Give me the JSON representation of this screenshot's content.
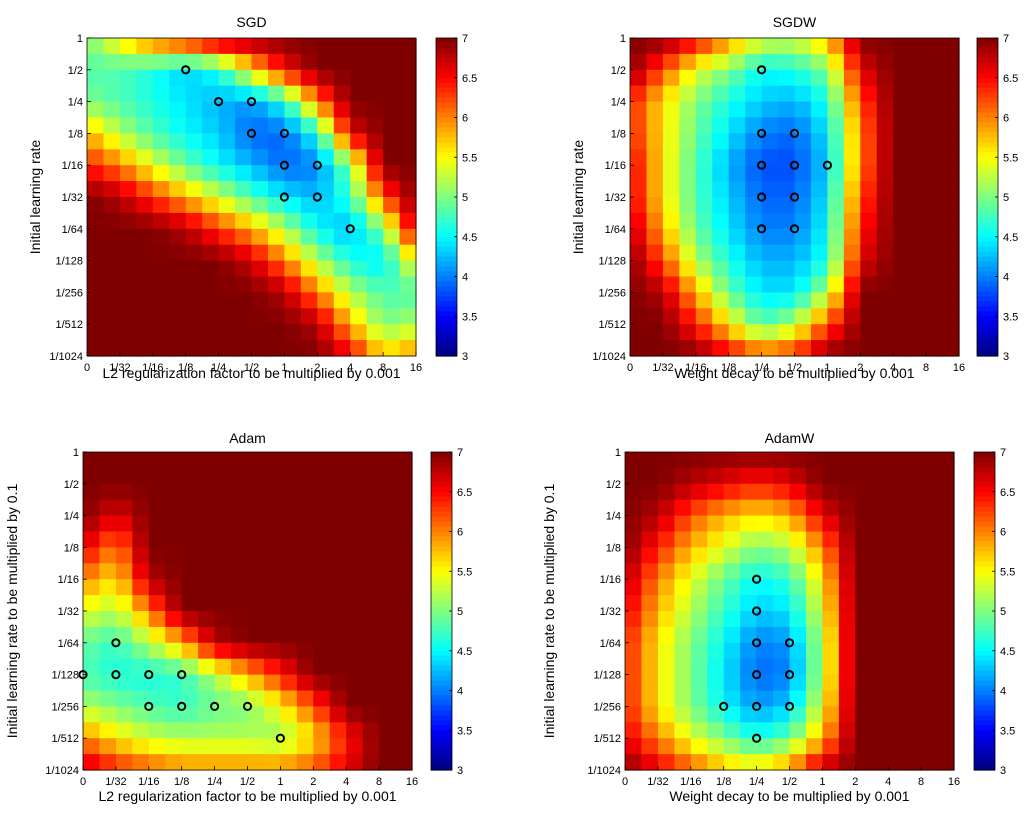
{
  "chart_data": [
    {
      "type": "heatmap",
      "title": "SGD",
      "xlabel": "L2 regularization factor to be multiplied by 0.001",
      "ylabel": "Initial learning rate",
      "x_ticks": [
        "0",
        "1/32",
        "1/16",
        "1/8",
        "1/4",
        "1/2",
        "1",
        "2",
        "4",
        "8",
        "16"
      ],
      "y_ticks": [
        "1",
        "1/2",
        "1/4",
        "1/8",
        "1/16",
        "1/32",
        "1/64",
        "1/128",
        "1/256",
        "1/512",
        "1/1024"
      ],
      "colorbar_ticks": [
        "3",
        "3.5",
        "4",
        "4.5",
        "5",
        "5.5",
        "6",
        "6.5",
        "7"
      ],
      "clim": [
        3,
        7
      ],
      "colormap": "jet",
      "best_settings": [
        {
          "x": "1/8",
          "y": "1/2"
        },
        {
          "x": "1/4",
          "y": "1/4"
        },
        {
          "x": "1/2",
          "y": "1/4"
        },
        {
          "x": "1/2",
          "y": "1/8"
        },
        {
          "x": "1",
          "y": "1/8"
        },
        {
          "x": "1",
          "y": "1/16"
        },
        {
          "x": "2",
          "y": "1/16"
        },
        {
          "x": "1",
          "y": "1/32"
        },
        {
          "x": "2",
          "y": "1/32"
        },
        {
          "x": "4",
          "y": "1/64"
        }
      ],
      "z": [
        [
          5.0,
          5.6,
          6.2,
          6.6,
          7,
          7,
          7,
          7,
          7,
          7,
          7
        ],
        [
          4.8,
          4.8,
          4.6,
          4.3,
          4.6,
          5.6,
          6.5,
          7,
          7,
          7,
          7
        ],
        [
          5.0,
          4.8,
          4.6,
          4.4,
          4.2,
          4.1,
          4.6,
          6.0,
          7,
          7,
          7
        ],
        [
          5.8,
          5.2,
          4.8,
          4.5,
          4.3,
          3.9,
          3.9,
          4.6,
          6.6,
          7,
          7
        ],
        [
          6.4,
          6.0,
          5.4,
          4.9,
          4.5,
          4.2,
          3.9,
          4.0,
          5.0,
          7,
          7
        ],
        [
          7,
          6.8,
          6.3,
          5.8,
          5.3,
          4.8,
          4.4,
          4.2,
          4.7,
          6.2,
          7
        ],
        [
          7,
          7,
          7,
          6.8,
          6.3,
          5.8,
          5.2,
          4.5,
          4.2,
          5.0,
          6.8
        ],
        [
          7,
          7,
          7,
          7,
          7,
          6.7,
          6.0,
          5.2,
          4.6,
          4.4,
          5.6
        ],
        [
          7,
          7,
          7,
          7,
          7,
          7,
          6.8,
          6.0,
          5.2,
          4.8,
          4.8
        ],
        [
          7,
          7,
          7,
          7,
          7,
          7,
          7,
          6.8,
          5.8,
          5.0,
          5.2
        ],
        [
          7,
          7,
          7,
          7,
          7,
          7,
          7,
          7,
          6.6,
          5.7,
          6.0
        ]
      ]
    },
    {
      "type": "heatmap",
      "title": "SGDW",
      "xlabel": "Weight decay to be multiplied by 0.001",
      "ylabel": "Initial learning rate",
      "x_ticks": [
        "0",
        "1/32",
        "1/16",
        "1/8",
        "1/4",
        "1/2",
        "1",
        "2",
        "4",
        "8",
        "16"
      ],
      "y_ticks": [
        "1",
        "1/2",
        "1/4",
        "1/8",
        "1/16",
        "1/32",
        "1/64",
        "1/128",
        "1/256",
        "1/512",
        "1/1024"
      ],
      "colorbar_ticks": [
        "3",
        "3.5",
        "4",
        "4.5",
        "5",
        "5.5",
        "6",
        "6.5",
        "7"
      ],
      "clim": [
        3,
        7
      ],
      "colormap": "jet",
      "best_settings": [
        {
          "x": "1/4",
          "y": "1/2"
        },
        {
          "x": "1/4",
          "y": "1/8"
        },
        {
          "x": "1/2",
          "y": "1/8"
        },
        {
          "x": "1/4",
          "y": "1/16"
        },
        {
          "x": "1/2",
          "y": "1/16"
        },
        {
          "x": "1",
          "y": "1/16"
        },
        {
          "x": "1/4",
          "y": "1/32"
        },
        {
          "x": "1/2",
          "y": "1/32"
        },
        {
          "x": "1/4",
          "y": "1/64"
        },
        {
          "x": "1/2",
          "y": "1/64"
        }
      ],
      "z": [
        [
          7,
          7,
          6.6,
          6.0,
          5.4,
          5.3,
          5.8,
          7,
          7,
          7,
          7
        ],
        [
          7,
          6.2,
          5.4,
          5.0,
          4.5,
          4.6,
          5.0,
          6.6,
          7,
          7,
          7
        ],
        [
          6.4,
          5.6,
          5.0,
          4.6,
          4.3,
          4.2,
          4.6,
          6.2,
          7,
          7,
          7
        ],
        [
          6.4,
          5.6,
          4.9,
          4.4,
          4.0,
          3.9,
          4.4,
          6.0,
          7,
          7,
          7
        ],
        [
          6.6,
          5.6,
          4.8,
          4.2,
          3.8,
          3.8,
          4.3,
          6.0,
          7,
          7,
          7
        ],
        [
          6.6,
          5.6,
          4.8,
          4.3,
          3.9,
          3.9,
          4.4,
          6.2,
          7,
          7,
          7
        ],
        [
          6.8,
          5.8,
          4.9,
          4.4,
          4.0,
          4.0,
          4.5,
          6.4,
          7,
          7,
          7
        ],
        [
          7,
          6.2,
          5.2,
          4.6,
          4.2,
          4.2,
          4.6,
          6.6,
          7,
          7,
          7
        ],
        [
          7,
          6.8,
          5.8,
          4.9,
          4.4,
          4.4,
          5.2,
          7,
          7,
          7,
          7
        ],
        [
          7,
          7,
          6.4,
          5.6,
          4.8,
          5.2,
          6.2,
          7,
          7,
          7,
          7
        ],
        [
          7,
          7,
          7,
          6.6,
          6.2,
          6.4,
          7,
          7,
          7,
          7,
          7
        ]
      ]
    },
    {
      "type": "heatmap",
      "title": "Adam",
      "xlabel": "L2 regularization factor to be multiplied by 0.001",
      "ylabel": "Initial learning rate to be multiplied by 0.1",
      "x_ticks": [
        "0",
        "1/32",
        "1/16",
        "1/8",
        "1/4",
        "1/2",
        "1",
        "2",
        "4",
        "8",
        "16"
      ],
      "y_ticks": [
        "1",
        "1/2",
        "1/4",
        "1/8",
        "1/16",
        "1/32",
        "1/64",
        "1/128",
        "1/256",
        "1/512",
        "1/1024"
      ],
      "colorbar_ticks": [
        "3",
        "3.5",
        "4",
        "4.5",
        "5",
        "5.5",
        "6",
        "6.5",
        "7"
      ],
      "clim": [
        3,
        7
      ],
      "colormap": "jet",
      "best_settings": [
        {
          "x": "1/32",
          "y": "1/64"
        },
        {
          "x": "0",
          "y": "1/128"
        },
        {
          "x": "1/32",
          "y": "1/128"
        },
        {
          "x": "1/16",
          "y": "1/128"
        },
        {
          "x": "1/8",
          "y": "1/128"
        },
        {
          "x": "1/16",
          "y": "1/256"
        },
        {
          "x": "1/8",
          "y": "1/256"
        },
        {
          "x": "1/4",
          "y": "1/256"
        },
        {
          "x": "1/2",
          "y": "1/256"
        },
        {
          "x": "1",
          "y": "1/512"
        }
      ],
      "z": [
        [
          7,
          7,
          7,
          7,
          7,
          7,
          7,
          7,
          7,
          7,
          7
        ],
        [
          7,
          7,
          7,
          7,
          7,
          7,
          7,
          7,
          7,
          7,
          7
        ],
        [
          7,
          6.6,
          7,
          7,
          7,
          7,
          7,
          7,
          7,
          7,
          7
        ],
        [
          6.6,
          6.0,
          7,
          7,
          7,
          7,
          7,
          7,
          7,
          7,
          7
        ],
        [
          6.0,
          5.6,
          6.8,
          7,
          7,
          7,
          7,
          7,
          7,
          7,
          7
        ],
        [
          5.4,
          5.2,
          6.0,
          7,
          7,
          7,
          7,
          7,
          7,
          7,
          7
        ],
        [
          4.9,
          4.7,
          5.2,
          5.8,
          6.8,
          7,
          7,
          7,
          7,
          7,
          7
        ],
        [
          4.8,
          4.6,
          4.6,
          4.7,
          5.2,
          5.8,
          6.4,
          7,
          7,
          7,
          7
        ],
        [
          5.2,
          5.0,
          4.8,
          4.7,
          4.9,
          5.0,
          5.5,
          6.2,
          7,
          7,
          7
        ],
        [
          6.0,
          5.6,
          5.3,
          5.2,
          5.2,
          5.2,
          5.1,
          5.6,
          6.4,
          7,
          7
        ],
        [
          6.8,
          6.4,
          6.2,
          6.0,
          6.0,
          6.0,
          6.0,
          6.2,
          6.6,
          7,
          7
        ]
      ]
    },
    {
      "type": "heatmap",
      "title": "AdamW",
      "xlabel": "Weight decay to be multiplied by 0.001",
      "ylabel": "Initial learning rate to be multiplied by 0.1",
      "x_ticks": [
        "0",
        "1/32",
        "1/16",
        "1/8",
        "1/4",
        "1/2",
        "1",
        "2",
        "4",
        "8",
        "16"
      ],
      "y_ticks": [
        "1",
        "1/2",
        "1/4",
        "1/8",
        "1/16",
        "1/32",
        "1/64",
        "1/128",
        "1/256",
        "1/512",
        "1/1024"
      ],
      "colorbar_ticks": [
        "3",
        "3.5",
        "4",
        "4.5",
        "5",
        "5.5",
        "6",
        "6.5",
        "7"
      ],
      "clim": [
        3,
        7
      ],
      "colormap": "jet",
      "best_settings": [
        {
          "x": "1/4",
          "y": "1/16"
        },
        {
          "x": "1/4",
          "y": "1/32"
        },
        {
          "x": "1/4",
          "y": "1/64"
        },
        {
          "x": "1/2",
          "y": "1/64"
        },
        {
          "x": "1/4",
          "y": "1/128"
        },
        {
          "x": "1/2",
          "y": "1/128"
        },
        {
          "x": "1/8",
          "y": "1/256"
        },
        {
          "x": "1/4",
          "y": "1/256"
        },
        {
          "x": "1/2",
          "y": "1/256"
        },
        {
          "x": "1/4",
          "y": "1/512"
        }
      ],
      "z": [
        [
          7,
          7,
          7,
          7,
          7,
          7,
          7,
          7,
          7,
          7,
          7
        ],
        [
          7,
          7,
          6.8,
          6.6,
          6.4,
          6.6,
          7,
          7,
          7,
          7,
          7
        ],
        [
          7,
          6.8,
          6.2,
          5.8,
          5.6,
          5.8,
          6.6,
          7,
          7,
          7,
          7
        ],
        [
          7,
          6.4,
          5.8,
          5.4,
          5.0,
          5.2,
          6.0,
          7,
          7,
          7,
          7
        ],
        [
          6.8,
          6.0,
          5.4,
          4.9,
          4.5,
          4.7,
          5.6,
          7,
          7,
          7,
          7
        ],
        [
          6.6,
          5.8,
          5.2,
          4.7,
          4.3,
          4.4,
          5.4,
          7,
          7,
          7,
          7
        ],
        [
          6.4,
          5.6,
          5.0,
          4.5,
          4.0,
          4.1,
          5.2,
          7,
          7,
          7,
          7
        ],
        [
          6.4,
          5.6,
          5.0,
          4.4,
          3.9,
          4.0,
          5.2,
          7,
          7,
          7,
          7
        ],
        [
          6.4,
          5.6,
          5.0,
          4.5,
          4.1,
          4.3,
          5.4,
          7,
          7,
          7,
          7
        ],
        [
          6.6,
          6.0,
          5.4,
          5.0,
          4.6,
          4.9,
          5.8,
          7,
          7,
          7,
          7
        ],
        [
          7,
          6.6,
          6.2,
          5.8,
          5.6,
          6.0,
          6.8,
          7,
          7,
          7,
          7
        ]
      ]
    }
  ]
}
